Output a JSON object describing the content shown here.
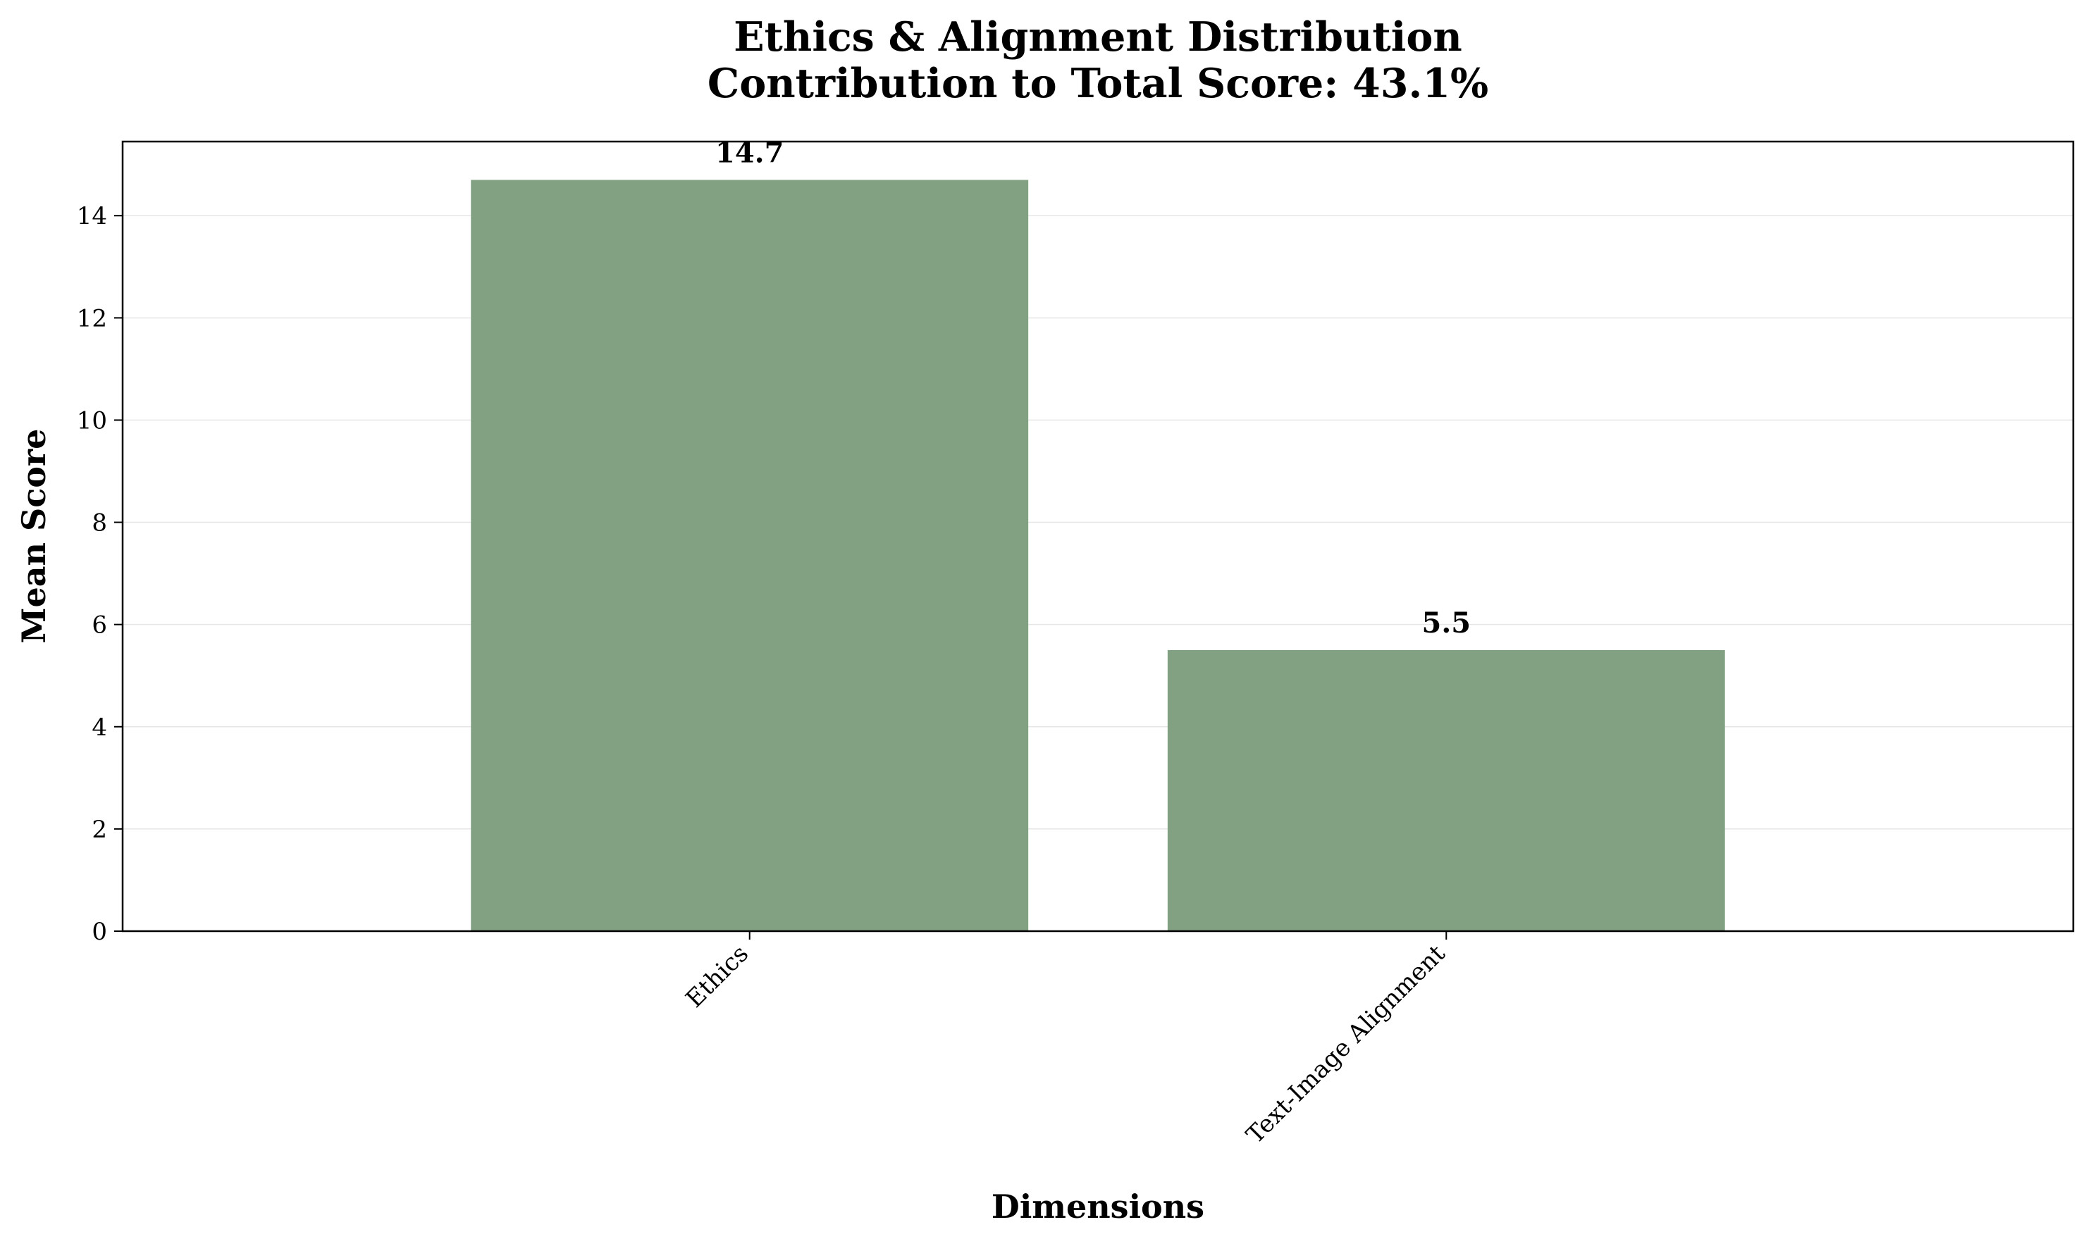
{
  "chart_data": {
    "type": "bar",
    "title_line1": "Ethics & Alignment Distribution",
    "title_line2": "Contribution to Total Score: 43.1%",
    "xlabel": "Dimensions",
    "ylabel": "Mean Score",
    "categories": [
      "Ethics",
      "Text-Image Alignment"
    ],
    "values": [
      14.7,
      5.5
    ],
    "value_labels": [
      "14.7",
      "5.5"
    ],
    "ylim": [
      0,
      15.45
    ],
    "yticks": [
      0,
      2,
      4,
      6,
      8,
      10,
      12,
      14
    ],
    "grid": true,
    "bar_color": "#82a082",
    "grid_color": "#e6e6e6"
  }
}
